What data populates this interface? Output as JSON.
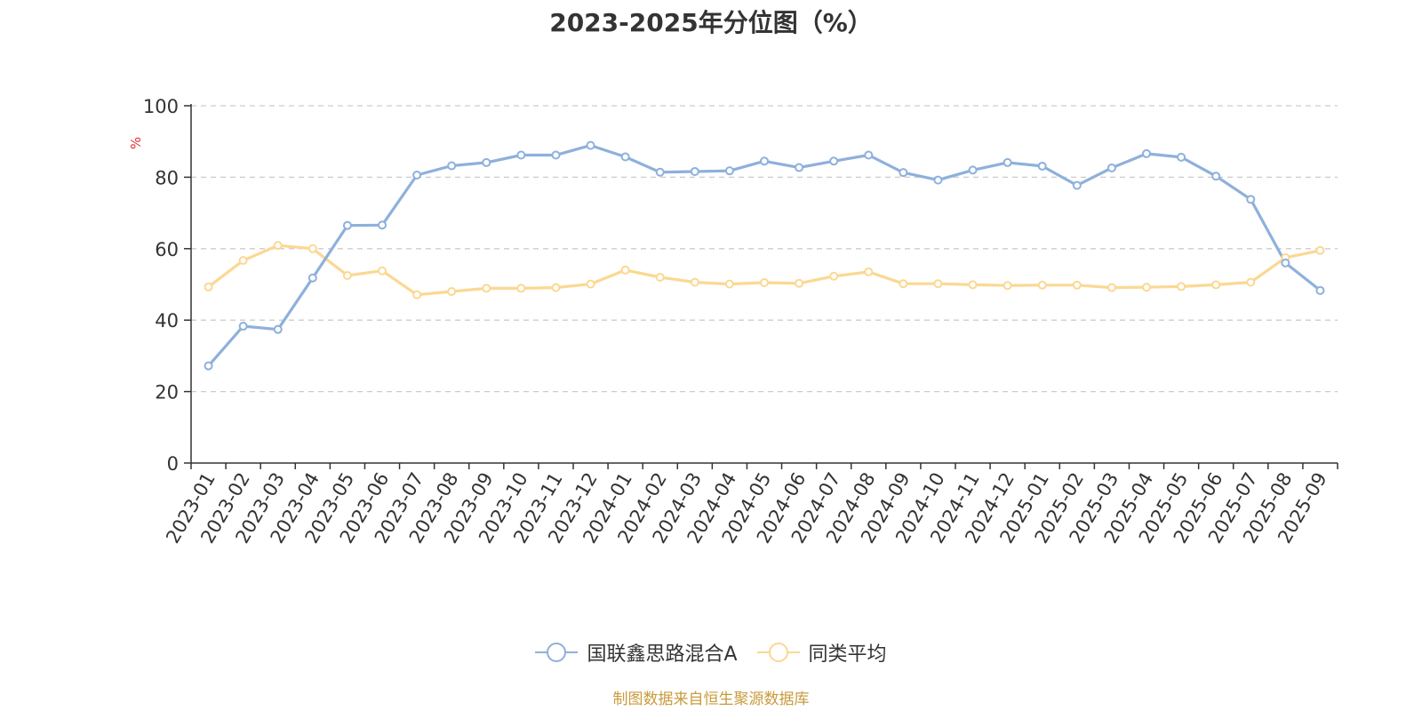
{
  "chart_data": {
    "type": "line",
    "title": "2023-2025年分位图（%）",
    "ylabel": "%",
    "xlabel": "",
    "ylim": [
      0,
      100
    ],
    "yticks": [
      0,
      20,
      40,
      60,
      80,
      100
    ],
    "grid": "horizontal-dashed",
    "legend_position": "bottom",
    "categories": [
      "2023-01",
      "2023-02",
      "2023-03",
      "2023-04",
      "2023-05",
      "2023-06",
      "2023-07",
      "2023-08",
      "2023-09",
      "2023-10",
      "2023-11",
      "2023-12",
      "2024-01",
      "2024-02",
      "2024-03",
      "2024-04",
      "2024-05",
      "2024-06",
      "2024-07",
      "2024-08",
      "2024-09",
      "2024-10",
      "2024-11",
      "2024-12",
      "2025-01",
      "2025-02",
      "2025-03",
      "2025-04",
      "2025-05",
      "2025-06",
      "2025-07",
      "2025-08",
      "2025-09"
    ],
    "series": [
      {
        "name": "国联鑫思路混合A",
        "color": "#8eb0dc",
        "values": [
          27.2,
          38.3,
          37.4,
          51.8,
          66.5,
          66.6,
          80.6,
          83.2,
          84.1,
          86.2,
          86.2,
          88.9,
          85.7,
          81.4,
          81.6,
          81.8,
          84.5,
          82.7,
          84.5,
          86.2,
          81.3,
          79.2,
          82.0,
          84.1,
          83.1,
          77.7,
          82.6,
          86.6,
          85.6,
          80.3,
          73.8,
          56.0,
          48.3
        ]
      },
      {
        "name": "同类平均",
        "color": "#fbd892",
        "values": [
          49.3,
          56.7,
          60.9,
          60.0,
          52.5,
          53.8,
          47.1,
          48.0,
          48.9,
          48.9,
          49.1,
          50.1,
          54.0,
          52.0,
          50.6,
          50.1,
          50.5,
          50.3,
          52.3,
          53.5,
          50.2,
          50.2,
          49.9,
          49.7,
          49.8,
          49.8,
          49.1,
          49.2,
          49.4,
          49.9,
          50.6,
          57.5,
          59.5
        ]
      }
    ]
  },
  "source_note": "制图数据来自恒生聚源数据库"
}
